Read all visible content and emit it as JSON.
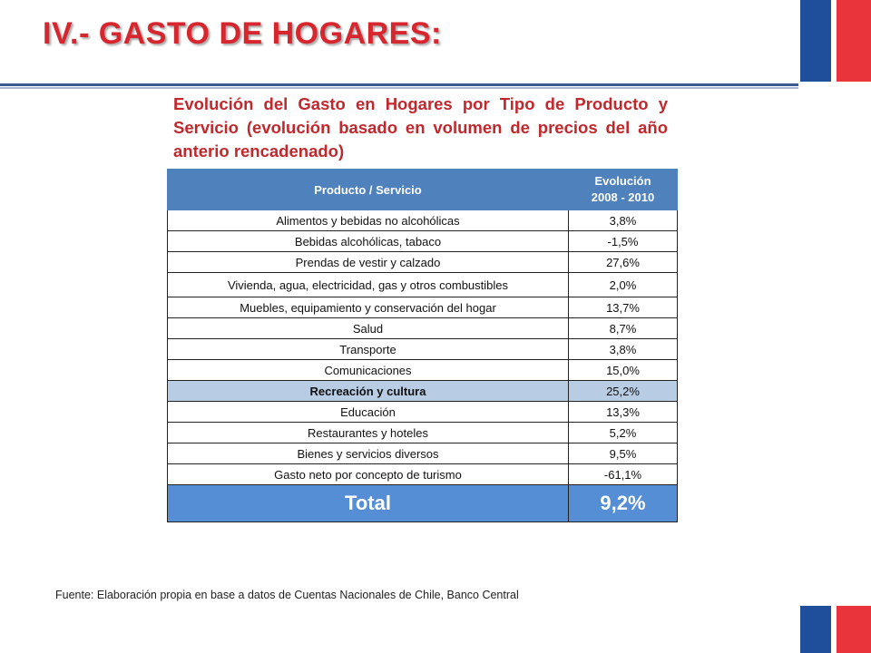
{
  "slide": {
    "title": "IV.- GASTO DE HOGARES:",
    "subtitle": "Evolución del Gasto en Hogares por Tipo de Producto y Servicio (evolución basado en volumen de precios del año anterio rencadenado)",
    "source": "Fuente: Elaboración propia en base a datos de Cuentas Nacionales de Chile, Banco Central"
  },
  "colors": {
    "title": "#d7262e",
    "header_bg": "#4f81bd",
    "highlight_bg": "#b8cce4",
    "total_bg": "#558ed5",
    "flag_blue": "#1f4e9b",
    "flag_red": "#e8343a"
  },
  "table": {
    "header": {
      "col1": "Producto  / Servicio",
      "col2_line1": "Evolución",
      "col2_line2": "2008 - 2010"
    },
    "rows": [
      {
        "label": "Alimentos y bebidas no alcohólicas",
        "value": "3,8%"
      },
      {
        "label": "Bebidas alcohólicas, tabaco",
        "value": "-1,5%"
      },
      {
        "label": "Prendas de vestir y calzado",
        "value": "27,6%"
      },
      {
        "label": "Vivienda, agua, electricidad, gas y otros combustibles",
        "value": "2,0%"
      },
      {
        "label": "Muebles, equipamiento y conservación del hogar",
        "value": "13,7%"
      },
      {
        "label": "Salud",
        "value": "8,7%"
      },
      {
        "label": "Transporte",
        "value": "3,8%"
      },
      {
        "label": "Comunicaciones",
        "value": "15,0%"
      },
      {
        "label": "Recreación y cultura",
        "value": "25,2%"
      },
      {
        "label": "Educación",
        "value": "13,3%"
      },
      {
        "label": "Restaurantes y hoteles",
        "value": "5,2%"
      },
      {
        "label": "Bienes y servicios diversos",
        "value": "9,5%"
      },
      {
        "label": "Gasto neto por concepto de turismo",
        "value": "-61,1%"
      }
    ],
    "total": {
      "label": "Total",
      "value": "9,2%"
    }
  }
}
